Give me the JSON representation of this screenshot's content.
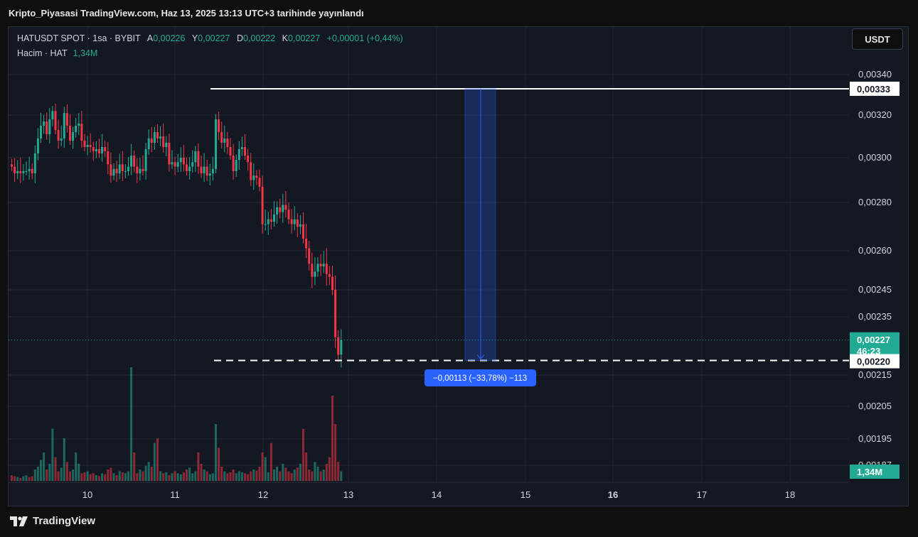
{
  "publication_title": "Kripto_Piyasasi TradingView.com, Haz 13, 2025 13:13 UTC+3 tarihinde yayınlandı",
  "legend": {
    "symbol": "HATUSDT SPOT · 1sa · BYBIT",
    "open_label": "A",
    "open": "0,00226",
    "high_label": "Y",
    "high": "0,00227",
    "low_label": "D",
    "low": "0,00222",
    "close_label": "K",
    "close": "0,00227",
    "change": "+0,00001 (+0,44%)",
    "volume_label": "Hacim · HAT",
    "volume": "1,34M"
  },
  "currency_button": "USDT",
  "brand": "TradingView",
  "colors": {
    "up": "#22ab94",
    "down": "#f23645",
    "measure": "#2962ff",
    "background": "#141822"
  },
  "chart_data": {
    "type": "candlestick",
    "y_ticks": [
      "0,00340",
      "0,00320",
      "0,00300",
      "0,00280",
      "0,00260",
      "0,00245",
      "0,00235",
      "0,00215",
      "0,00205",
      "0,00195",
      "0,00187"
    ],
    "y_tick_values": [
      0.0034,
      0.0032,
      0.003,
      0.0028,
      0.0026,
      0.00245,
      0.00235,
      0.00215,
      0.00205,
      0.00195,
      0.00187
    ],
    "x_ticks": [
      "10",
      "11",
      "12",
      "13",
      "14",
      "15",
      "16",
      "17",
      "18"
    ],
    "x_ticks_bold": [
      "16"
    ],
    "price_labels": {
      "high_line": "0,00333",
      "current_price": "0,00227",
      "countdown": "46:23",
      "low_line": "0,00220",
      "volume": "1,34M"
    },
    "measure_label": "−0,00113 (−33,78%) −113",
    "measure_from": 0.00333,
    "measure_to": 0.0022,
    "candles_close": [
      0.00296,
      0.00293,
      0.00294,
      0.00293,
      0.00294,
      0.00294,
      0.00295,
      0.00293,
      0.00302,
      0.00309,
      0.00315,
      0.00317,
      0.00311,
      0.00318,
      0.00322,
      0.00313,
      0.00308,
      0.00309,
      0.00321,
      0.00315,
      0.00308,
      0.00312,
      0.00315,
      0.00316,
      0.00308,
      0.00305,
      0.00306,
      0.00305,
      0.00303,
      0.00304,
      0.00302,
      0.00305,
      0.00303,
      0.00297,
      0.00292,
      0.00295,
      0.00293,
      0.00297,
      0.00294,
      0.00294,
      0.00296,
      0.00301,
      0.00296,
      0.00293,
      0.00295,
      0.00294,
      0.00304,
      0.00309,
      0.00307,
      0.00312,
      0.00309,
      0.0031,
      0.00305,
      0.00307,
      0.00297,
      0.00298,
      0.00296,
      0.00298,
      0.003,
      0.00297,
      0.00294,
      0.00296,
      0.00298,
      0.00303,
      0.00296,
      0.00293,
      0.00296,
      0.00292,
      0.00293,
      0.00295,
      0.00318,
      0.00312,
      0.00307,
      0.00309,
      0.00305,
      0.00301,
      0.00294,
      0.00299,
      0.00304,
      0.00305,
      0.00301,
      0.00298,
      0.0029,
      0.00292,
      0.00291,
      0.00287,
      0.00271,
      0.00271,
      0.00273,
      0.00272,
      0.00275,
      0.00278,
      0.00276,
      0.00279,
      0.00277,
      0.00273,
      0.00271,
      0.00273,
      0.0027,
      0.00271,
      0.00265,
      0.00261,
      0.00255,
      0.0025,
      0.00252,
      0.00255,
      0.00254,
      0.00255,
      0.00251,
      0.0025,
      0.00245,
      0.00228,
      0.00222,
      0.00227
    ],
    "volumes": [
      6,
      5,
      4,
      3,
      5,
      6,
      4,
      5,
      12,
      15,
      22,
      30,
      12,
      18,
      55,
      25,
      10,
      14,
      45,
      20,
      10,
      12,
      30,
      18,
      8,
      9,
      10,
      7,
      8,
      6,
      5,
      8,
      7,
      12,
      14,
      8,
      6,
      10,
      9,
      8,
      10,
      120,
      30,
      8,
      12,
      10,
      16,
      20,
      15,
      40,
      45,
      10,
      8,
      9,
      6,
      8,
      10,
      8,
      7,
      9,
      12,
      14,
      8,
      10,
      30,
      18,
      12,
      10,
      7,
      8,
      60,
      35,
      15,
      10,
      8,
      9,
      12,
      8,
      10,
      9,
      8,
      7,
      10,
      12,
      11,
      15,
      30,
      25,
      9,
      40,
      12,
      15,
      10,
      18,
      14,
      10,
      8,
      12,
      14,
      18,
      55,
      30,
      12,
      10,
      20,
      15,
      10,
      12,
      18,
      25,
      90,
      60,
      20,
      10
    ],
    "volume_colors_up": [
      false,
      false,
      true,
      false,
      true,
      true,
      false,
      false,
      true,
      true,
      true,
      true,
      false,
      true,
      true,
      false,
      false,
      true,
      true,
      false,
      false,
      true,
      true,
      true,
      false,
      false,
      true,
      false,
      false,
      true,
      false,
      true,
      false,
      false,
      false,
      true,
      false,
      true,
      false,
      true,
      true,
      true,
      false,
      false,
      true,
      false,
      true,
      true,
      false,
      true,
      false,
      true,
      false,
      true,
      false,
      true,
      false,
      true,
      true,
      false,
      false,
      true,
      true,
      true,
      false,
      false,
      true,
      false,
      true,
      true,
      true,
      false,
      false,
      true,
      false,
      false,
      false,
      true,
      true,
      true,
      false,
      false,
      false,
      true,
      false,
      false,
      false,
      true,
      true,
      false,
      true,
      true,
      false,
      true,
      false,
      false,
      false,
      true,
      false,
      true,
      false,
      false,
      false,
      false,
      true,
      true,
      false,
      true,
      false,
      false,
      false,
      false,
      false,
      true
    ]
  }
}
